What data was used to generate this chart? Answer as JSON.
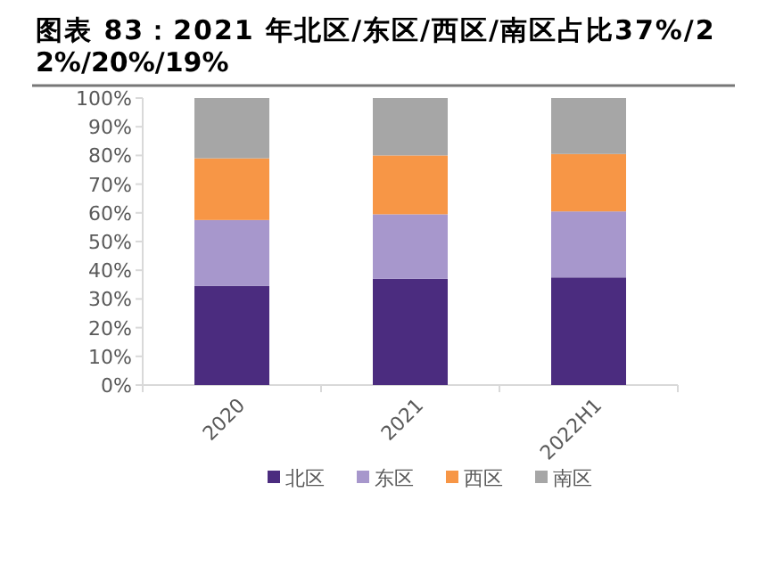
{
  "chart_data": {
    "type": "bar",
    "stacked": true,
    "legend": "bottom",
    "title": "图表 83：2021 年北区/东区/西区/南区占比37%/22%/20%/19%",
    "categories": [
      "2020",
      "2021",
      "2022H1"
    ],
    "series": [
      {
        "name": "北区",
        "color": "#4b2c7f",
        "values": [
          34.5,
          37,
          37.5
        ]
      },
      {
        "name": "东区",
        "color": "#a797cc",
        "values": [
          23,
          22.5,
          23
        ]
      },
      {
        "name": "西区",
        "color": "#f79646",
        "values": [
          21.5,
          20.5,
          20
        ]
      },
      {
        "name": "南区",
        "color": "#a6a6a6",
        "values": [
          21,
          20,
          19.5
        ]
      }
    ],
    "ylim": [
      0,
      100
    ],
    "yticks": [
      {
        "value": 0,
        "label": "0%"
      },
      {
        "value": 10,
        "label": "10%"
      },
      {
        "value": 20,
        "label": "20%"
      },
      {
        "value": 30,
        "label": "30%"
      },
      {
        "value": 40,
        "label": "40%"
      },
      {
        "value": 50,
        "label": "50%"
      },
      {
        "value": 60,
        "label": "60%"
      },
      {
        "value": 70,
        "label": "70%"
      },
      {
        "value": 80,
        "label": "80%"
      },
      {
        "value": 90,
        "label": "90%"
      },
      {
        "value": 100,
        "label": "100%"
      }
    ]
  }
}
